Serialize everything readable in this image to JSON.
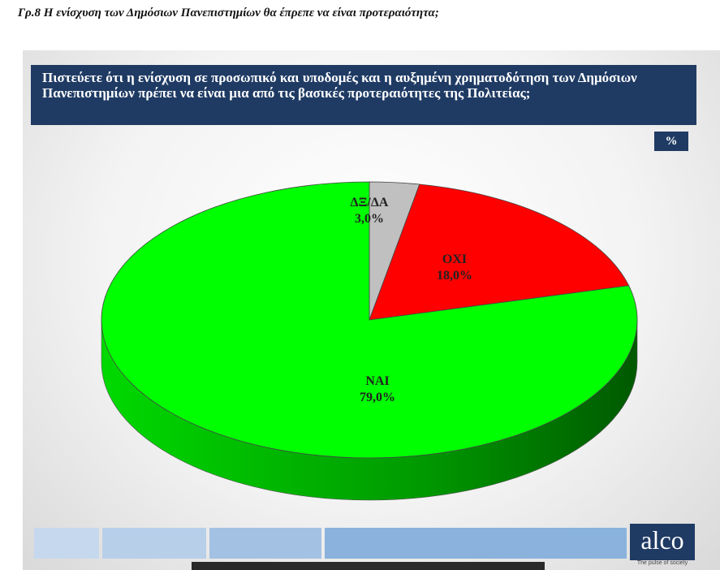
{
  "caption": "Γρ.8 Η ενίσχυση των Δημόσιων Πανεπιστημίων θα έπρεπε να είναι προτεραιότητα;",
  "chart_data": {
    "type": "pie",
    "title": "Πιστεύετε ότι η ενίσχυση σε προσωπικό και υποδομές  και η αυξημένη χρηματοδότηση των Δημόσιων Πανεπιστημίων πρέπει να είναι μια από τις βασικές προτεραιότητες της Πολιτείας;",
    "unit_badge": "%",
    "slices": [
      {
        "label": "ΔΞ/ΔΑ",
        "value": 3.0,
        "value_label": "3,0%",
        "color": "#c0c0c0"
      },
      {
        "label": "ΟΧΙ",
        "value": 18.0,
        "value_label": "18,0%",
        "color": "#ff0000"
      },
      {
        "label": "ΝΑΙ",
        "value": 79.0,
        "value_label": "79,0%",
        "color": "#00ff00"
      }
    ]
  },
  "logo": {
    "text": "alco",
    "tagline": "The pulse of society"
  },
  "colors": {
    "header_bg": "#1f3b64",
    "footer_1": "#c5d8ee",
    "footer_2": "#b7cfe9",
    "footer_3": "#a3c2e3",
    "footer_4": "#8ab2dc"
  }
}
